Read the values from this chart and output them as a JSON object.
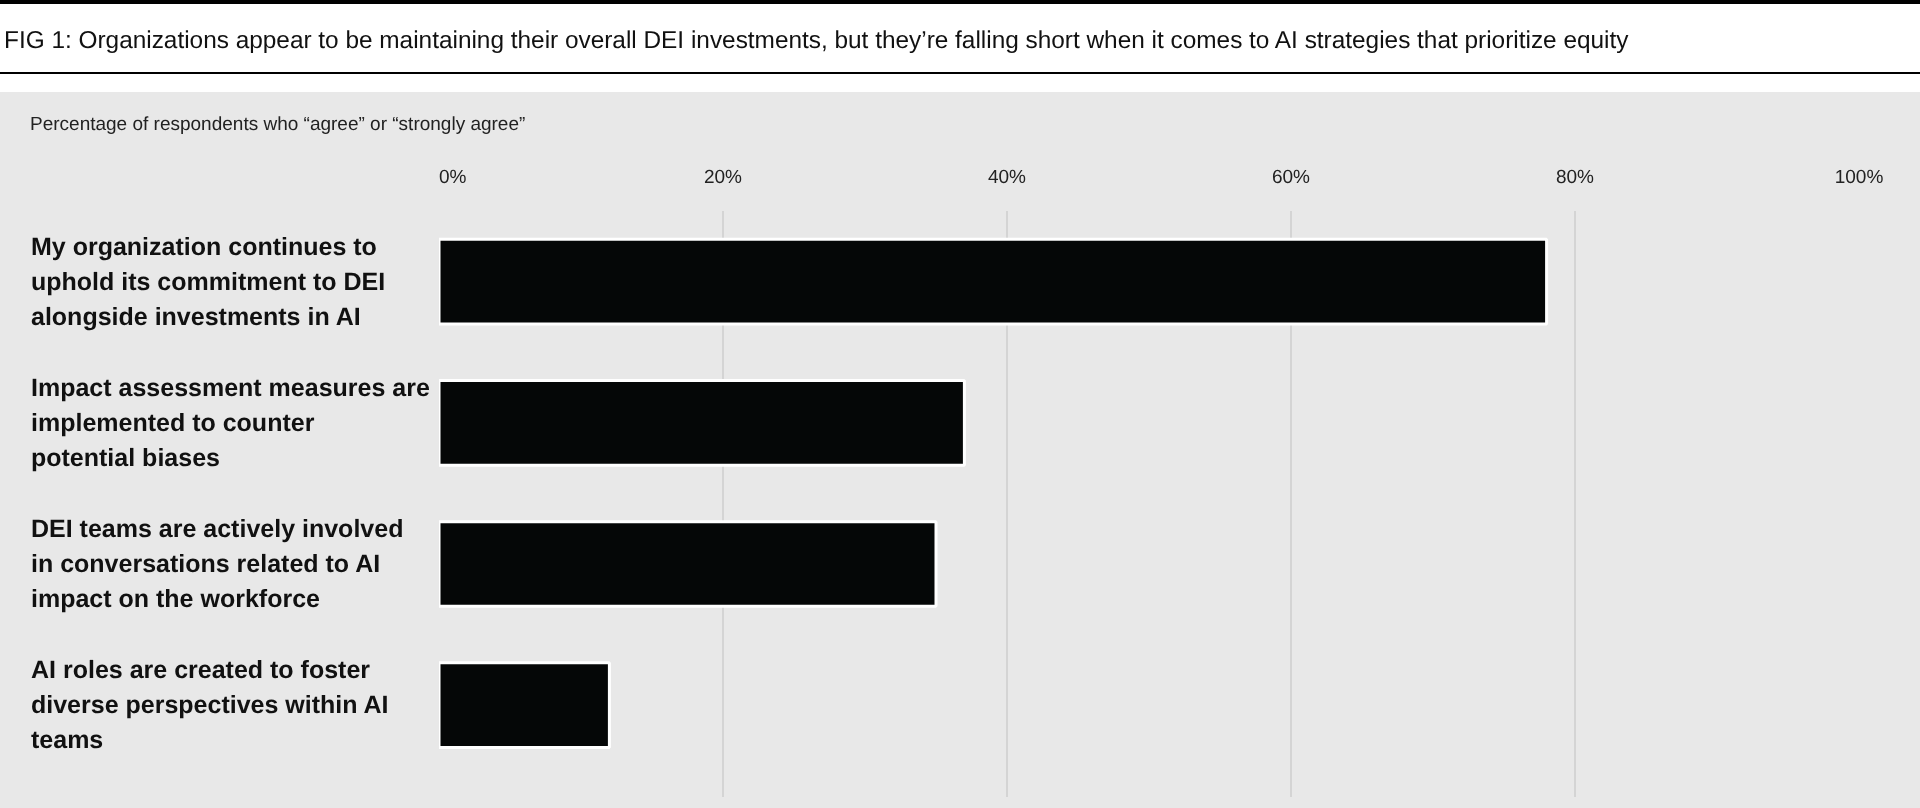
{
  "chart_data": {
    "type": "bar",
    "orientation": "horizontal",
    "title": "FIG 1: Organizations appear to be maintaining their overall DEI investments, but they’re falling short when it comes to AI strategies that prioritize equity",
    "subtitle": "Percentage of respondents who “agree” or “strongly agree”",
    "categories": [
      "My organization continues to uphold its commitment to DEI alongside investments in AI",
      "Impact assessment measures are implemented to counter potential biases",
      "DEI teams are actively involved in conversations related to AI impact on the workforce",
      "AI roles are created to foster diverse perspectives within AI teams"
    ],
    "values": [
      78,
      37,
      35,
      12
    ],
    "color": "#050707",
    "xlim": [
      0,
      100
    ],
    "xticks": [
      {
        "value": 0,
        "label": "0%"
      },
      {
        "value": 20,
        "label": "20%"
      },
      {
        "value": 40,
        "label": "40%"
      },
      {
        "value": 60,
        "label": "60%"
      },
      {
        "value": 80,
        "label": "80%"
      },
      {
        "value": 100,
        "label": "100%"
      }
    ],
    "grid": "x"
  }
}
